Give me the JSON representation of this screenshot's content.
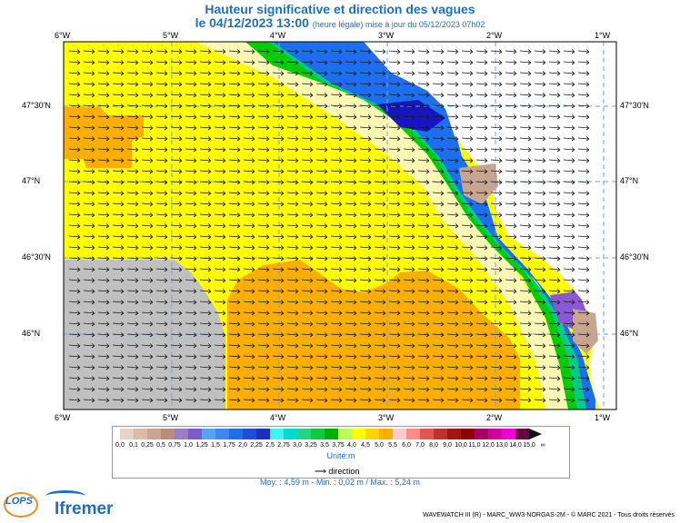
{
  "header": {
    "title_line1": "Hauteur significative et direction des vagues",
    "title_line2": "le 04/12/2023 13:00",
    "title_sub": "(heure légale) mise à jour du 05/12/2023 07h02"
  },
  "map": {
    "lon_labels": [
      "6°W",
      "5°W",
      "4°W",
      "3°W",
      "2°W",
      "1°W"
    ],
    "lat_labels": [
      "47°30'N",
      "47°N",
      "46°30'N",
      "46°N"
    ],
    "colors": {
      "land": "#ffffff",
      "nodata": "#c0c0c0",
      "orange": "#ffae00",
      "yellow": "#ffff00",
      "pale_yellow": "#fcf9b4",
      "green": "#00cc00",
      "teal": "#00cc88",
      "cyan": "#00e0e0",
      "blue": "#1b6ff0",
      "darkblue": "#1616c0",
      "purple": "#8a58d6",
      "arrow": "#1a1a1a",
      "grid": "#7a9fd8"
    }
  },
  "legend": {
    "colors": [
      "#e8d3c4",
      "#d8bca8",
      "#c9a590",
      "#b88e78",
      "#9b7fc5",
      "#7c5bd0",
      "#55a3f5",
      "#3a88f0",
      "#1f6fe8",
      "#1d4ed6",
      "#1a2fbf",
      "#40f2f2",
      "#00dccc",
      "#22d484",
      "#12c83c",
      "#00b000",
      "#b8ff55",
      "#ffff00",
      "#ffd400",
      "#ffae00",
      "#ffc9c9",
      "#ff8a8a",
      "#e05555",
      "#c03030",
      "#a21515",
      "#8c0000",
      "#aa0066",
      "#d1009c",
      "#f200d8",
      "#6a0040"
    ],
    "tick_labels": [
      "0,0",
      "0,1",
      "0,25",
      "0,5",
      "0,75",
      "1,0",
      "1,25",
      "1,5",
      "1,75",
      "2,0",
      "2,25",
      "2,5",
      "2,75",
      "3,0",
      "3,25",
      "3,5",
      "3,75",
      "4,0",
      "4,5",
      "5,0",
      "5,5",
      "6,0",
      "7,0",
      "8,0",
      "9,0",
      "10,0",
      "11,0",
      "12,0",
      "13,0",
      "14,0",
      "15,0",
      "∞"
    ],
    "unit_label": "Unité:m",
    "direction_label": "direction"
  },
  "stats": "Moy. : 4,59 m  -  Min. : 0,02 m / Max. : 5,24 m",
  "branding": {
    "lops": "LOPS",
    "ifremer": "Ifremer",
    "footer": "WAVEWATCH III (R) - MARC_WW3-NORGAS-2M - © MARC 2021 - Tous droits réservés"
  }
}
